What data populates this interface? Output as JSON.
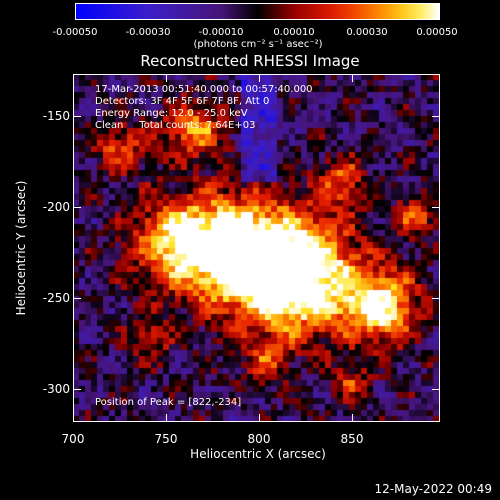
{
  "colorbar": {
    "ticks": [
      "-0.00050",
      "-0.00030",
      "-0.00010",
      "0.00010",
      "0.00030",
      "0.00050"
    ],
    "units": "(photons cm⁻² s⁻¹ asec⁻²)"
  },
  "title": "Reconstructed RHESSI Image",
  "info_lines": {
    "time": "17-Mar-2013 00:51:40.000 to 00:57:40.000",
    "detectors": "Detectors: 3F 4F 5F 6F 7F 8F, Att 0",
    "energy": "Energy Range: 12.0 - 25.0 keV",
    "clean": "Clean     Total counts: 7.64E+03",
    "peak": "Position of Peak = [822,-234]"
  },
  "axes": {
    "xlabel": "Heliocentric X (arcsec)",
    "ylabel": "Heliocentric Y (arcsec)",
    "xticks": [
      "700",
      "750",
      "800",
      "850"
    ],
    "yticks": [
      "-150",
      "-200",
      "-250",
      "-300"
    ],
    "xrange": [
      700,
      890
    ],
    "yrange": [
      -320,
      -130
    ]
  },
  "footer": {
    "date": "12-May-2022 00:49"
  },
  "colors": {
    "background": "#000000",
    "colormap_low": "#0000ff",
    "colormap_mid": "#000000",
    "colormap_high": "#ffffff"
  }
}
